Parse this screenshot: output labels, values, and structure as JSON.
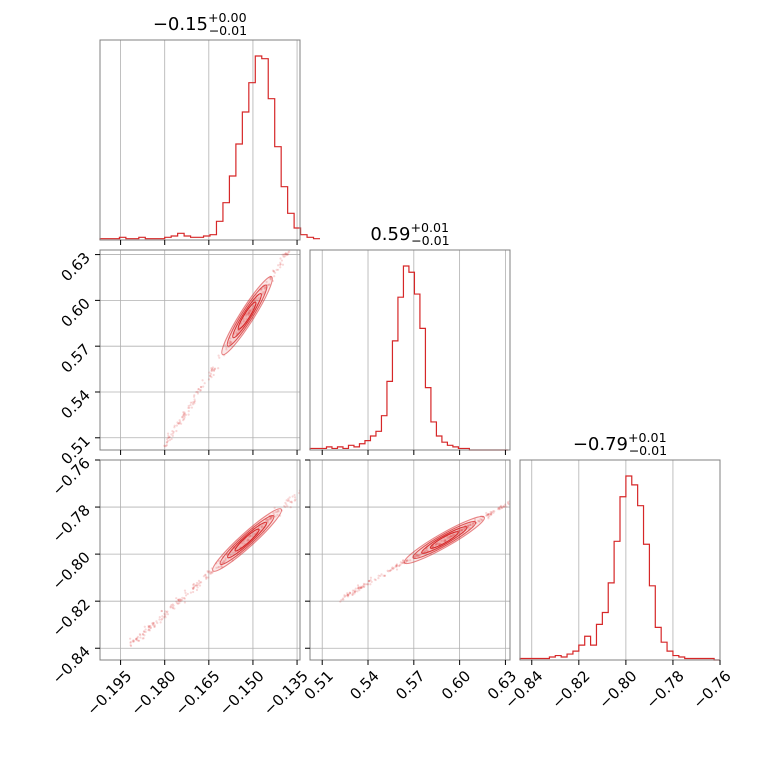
{
  "chart_data": {
    "type": "corner",
    "color": "#d62728",
    "parameters": [
      {
        "title_value": "−0.15",
        "title_plus": "+0.00",
        "title_minus": "−0.01",
        "median": -0.152,
        "range": [
          -0.202,
          -0.134
        ],
        "ticks": [
          -0.195,
          -0.18,
          -0.165,
          -0.15,
          -0.135
        ],
        "tick_labels": [
          "−0.195",
          "−0.180",
          "−0.165",
          "−0.150",
          "−0.135"
        ],
        "hist_bin_edges": [
          -0.202,
          -0.2,
          -0.198,
          -0.196,
          -0.194,
          -0.192,
          -0.19,
          -0.188,
          -0.186,
          -0.184,
          -0.182,
          -0.18,
          -0.178,
          -0.176,
          -0.174,
          -0.172,
          -0.17,
          -0.168,
          -0.166,
          -0.164,
          -0.162,
          -0.16,
          -0.158,
          -0.156,
          -0.154,
          -0.152,
          -0.15,
          -0.148,
          -0.146,
          -0.144,
          -0.142,
          -0.14,
          -0.138,
          -0.136,
          -0.134
        ],
        "hist_counts": [
          0,
          0,
          0,
          0,
          0,
          0,
          0,
          0,
          0,
          0,
          0,
          0,
          0,
          0,
          0,
          0,
          0,
          0,
          0,
          0,
          0,
          0,
          0,
          0,
          0,
          0,
          0,
          0,
          0,
          0,
          0,
          0,
          0,
          0
        ]
      },
      {
        "title_value": "0.59",
        "title_plus": "+0.01",
        "title_minus": "−0.01",
        "median": 0.59,
        "range": [
          0.502,
          0.633
        ],
        "ticks": [
          0.51,
          0.54,
          0.57,
          0.6,
          0.63
        ],
        "tick_labels": [
          "0.51",
          "0.54",
          "0.57",
          "0.60",
          "0.63"
        ],
        "hist_bin_edges": [],
        "hist_counts": []
      },
      {
        "title_value": "−0.79",
        "title_plus": "+0.01",
        "title_minus": "−0.01",
        "median": -0.794,
        "range": [
          -0.845,
          -0.76
        ],
        "ticks": [
          -0.84,
          -0.82,
          -0.8,
          -0.78,
          -0.76
        ],
        "tick_labels": [
          "−0.84",
          "−0.82",
          "−0.80",
          "−0.78",
          "−0.76"
        ],
        "hist_bin_edges": [],
        "hist_counts": []
      }
    ],
    "histograms": [
      {
        "parameter": 0,
        "bin_lo": -0.202,
        "bin_width": 0.0022,
        "counts": [
          1,
          1,
          1,
          2,
          1,
          1,
          2,
          1,
          1,
          1,
          2,
          3,
          5,
          3,
          2,
          2,
          3,
          4,
          14,
          28,
          48,
          72,
          96,
          118,
          138,
          136,
          106,
          70,
          40,
          20,
          9,
          4,
          2,
          1
        ]
      },
      {
        "parameter": 1,
        "bin_lo": 0.502,
        "bin_width": 0.0036,
        "counts": [
          1,
          1,
          1,
          2,
          1,
          2,
          1,
          3,
          2,
          4,
          6,
          9,
          12,
          22,
          44,
          70,
          98,
          118,
          114,
          100,
          78,
          40,
          18,
          9,
          5,
          3,
          2,
          1,
          1,
          0,
          0,
          0,
          0,
          0,
          0,
          0
        ]
      },
      {
        "parameter": 2,
        "bin_lo": -0.845,
        "bin_width": 0.0025,
        "counts": [
          1,
          1,
          1,
          1,
          1,
          2,
          3,
          2,
          4,
          6,
          10,
          16,
          10,
          24,
          32,
          52,
          80,
          110,
          124,
          118,
          104,
          78,
          50,
          22,
          12,
          6,
          3,
          2,
          1,
          1,
          1,
          1,
          1,
          0
        ]
      }
    ],
    "correlations": [
      {
        "x": 0,
        "y": 1,
        "slope": 3.05,
        "spread": 0.0035
      },
      {
        "x": 0,
        "y": 2,
        "slope": 1.13,
        "spread": 0.0022
      },
      {
        "x": 1,
        "y": 2,
        "slope": 0.37,
        "spread": 0.0011
      }
    ],
    "grid": true
  }
}
